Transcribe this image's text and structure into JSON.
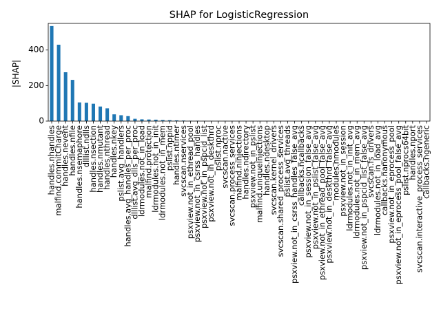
{
  "chart_data": {
    "type": "bar",
    "title": "SHAP for LogisticRegression",
    "xlabel": "",
    "ylabel": "|SHAP|",
    "ylim": [
      0,
      550
    ],
    "yticks": [
      0,
      200,
      400
    ],
    "bar_color": "#1f77b4",
    "grid": false,
    "legend": "none",
    "categories": [
      "handles.nhandles",
      "malfind.commitCharge",
      "handles.nevent",
      "handles.nfile",
      "handles.nsemaphore",
      "dlllist.ndlls",
      "handles.nsection",
      "handles.nmutant",
      "handles.nthread",
      "handles.nkey",
      "pslist.avg_handlers",
      "handles.avg_handles_per_proc",
      "dlllist.avg_dlls_per_proc",
      "ldrmodules.not_in_load",
      "malfind.protection",
      "ldrmodules.not_in_init",
      "ldrmodules.not_in_mem",
      "pslist.nppid",
      "handles.ntimer",
      "svcscan.nservices",
      "psxview.not_in_ethread_pool",
      "psxview.not_in_csrss_handles",
      "psxview.not_in_pspcid_list",
      "psxview.not_in_deskthrd",
      "pslist.nproc",
      "svcscan.nactive",
      "svcscan.process_services",
      "malfind.ninjections",
      "handles.ndirectory",
      "psxview.not_in_pslist",
      "malfind.uniqueInjections",
      "handles.ndesktop",
      "svcscan.kernel_drivers",
      "svcscan.shared_process_services",
      "pslist.avg_threads",
      "psxview.not_in_csrss_handles_false_avg",
      "callbacks.ncallbacks",
      "psxview.not_in_session_false_avg",
      "psxview.not_in_pslist_false_avg",
      "psxview.not_in_ethread_pool_false_avg",
      "psxview.not_in_deskthrd_false_avg",
      "modules.nmodules",
      "psxview.not_in_session",
      "ldrmodules.not_in_init_avg",
      "ldrmodules.not_in_mem_avg",
      "psxview.not_in_pspcid_list_false_avg",
      "svcscan.fs_drivers",
      "ldrmodules.not_in_load_avg",
      "callbacks.nanonymous",
      "psxview.not_in_eprocess_pool",
      "psxview.not_in_eprocess_pool_false_avg",
      "pslist.nprocs64bit",
      "handles.nport",
      "svcscan.interactive_process_services",
      "callbacks.ngeneric"
    ],
    "values": [
      535,
      430,
      275,
      232,
      105,
      103,
      98,
      82,
      72,
      38,
      33,
      28,
      13,
      10,
      9,
      8,
      6,
      5,
      4,
      3,
      2,
      2,
      1,
      1,
      1,
      1,
      1,
      1,
      0.5,
      0.5,
      0.5,
      0.5,
      0.3,
      0.3,
      0.3,
      0.2,
      0.2,
      0.2,
      0.1,
      0.1,
      0.1,
      0.1,
      0.1,
      0.1,
      0.1,
      0.1,
      0,
      0,
      0,
      0,
      0,
      0,
      0,
      0,
      0
    ]
  }
}
